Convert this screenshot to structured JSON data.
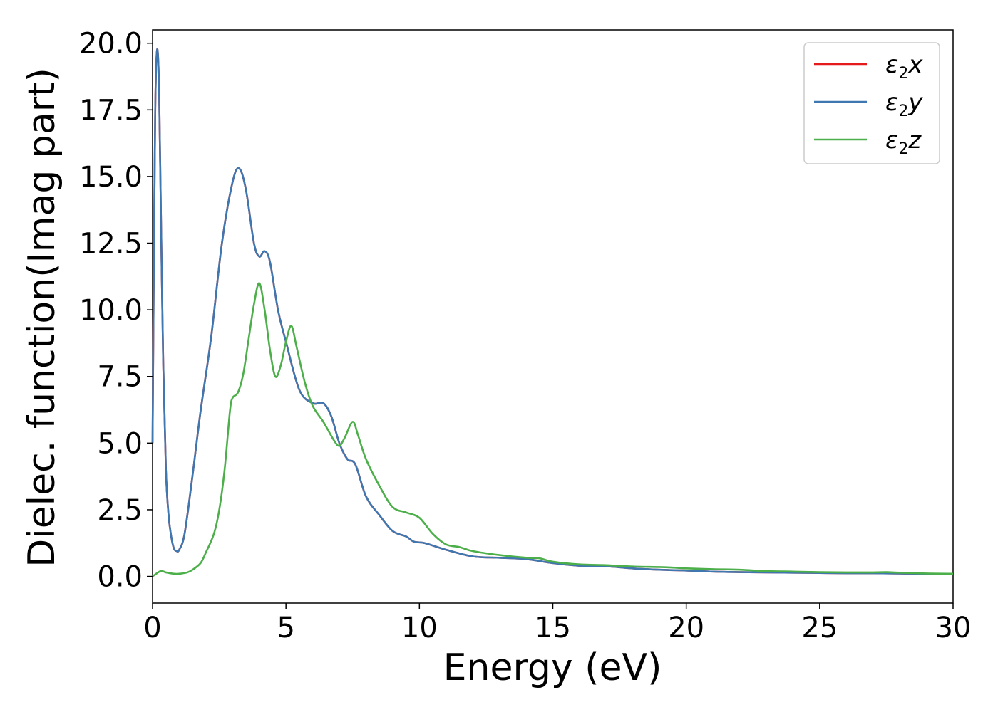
{
  "chart_data": {
    "type": "line",
    "title": "",
    "xlabel": "Energy (eV)",
    "ylabel": "Dielec. function(Imag part)",
    "xlim": [
      0,
      30
    ],
    "ylim": [
      -1.0,
      20.5
    ],
    "xticks": [
      0,
      5,
      10,
      15,
      20,
      25,
      30
    ],
    "xtick_labels": [
      "0",
      "5",
      "10",
      "15",
      "20",
      "25",
      "30"
    ],
    "yticks": [
      0.0,
      2.5,
      5.0,
      7.5,
      10.0,
      12.5,
      15.0,
      17.5,
      20.0
    ],
    "ytick_labels": [
      "0.0",
      "2.5",
      "5.0",
      "7.5",
      "10.0",
      "12.5",
      "15.0",
      "17.5",
      "20.0"
    ],
    "grid": false,
    "legend_position": "top-right",
    "series": [
      {
        "name": "ε2x",
        "legend_main": "ε",
        "legend_sub": "2",
        "legend_tail": "x",
        "color": "#e41a1c",
        "x": [
          0.0,
          0.05,
          0.1,
          0.15,
          0.2,
          0.25,
          0.3,
          0.4,
          0.5,
          0.6,
          0.7,
          0.8,
          0.9,
          1.0,
          1.2,
          1.5,
          1.8,
          2.2,
          2.6,
          3.0,
          3.25,
          3.5,
          3.8,
          4.0,
          4.2,
          4.4,
          4.7,
          5.0,
          5.5,
          6.0,
          6.4,
          6.7,
          7.0,
          7.3,
          7.6,
          8.0,
          8.5,
          9.0,
          9.5,
          9.8,
          10.2,
          11.0,
          12.0,
          13.0,
          14.0,
          15.0,
          16.0,
          17.0,
          18.0,
          19.0,
          20.0,
          21.0,
          22.0,
          23.0,
          24.0,
          25.0,
          26.0,
          27.0,
          28.0,
          29.0,
          30.0
        ],
        "y": [
          5.0,
          12.0,
          17.5,
          19.5,
          19.6,
          18.0,
          14.5,
          8.0,
          4.0,
          2.3,
          1.5,
          1.05,
          0.95,
          1.0,
          1.6,
          3.8,
          6.2,
          9.0,
          12.5,
          14.8,
          15.3,
          14.5,
          12.5,
          12.0,
          12.2,
          11.8,
          10.0,
          8.8,
          7.0,
          6.5,
          6.5,
          6.0,
          5.0,
          4.4,
          4.2,
          3.0,
          2.3,
          1.7,
          1.5,
          1.3,
          1.25,
          1.0,
          0.75,
          0.7,
          0.65,
          0.5,
          0.4,
          0.38,
          0.3,
          0.25,
          0.22,
          0.18,
          0.16,
          0.15,
          0.14,
          0.13,
          0.12,
          0.12,
          0.11,
          0.1,
          0.1
        ]
      },
      {
        "name": "ε2y",
        "legend_main": "ε",
        "legend_sub": "2",
        "legend_tail": "y",
        "color": "#3f78b0",
        "x": [
          0.0,
          0.05,
          0.1,
          0.15,
          0.2,
          0.25,
          0.3,
          0.4,
          0.5,
          0.6,
          0.7,
          0.8,
          0.9,
          1.0,
          1.2,
          1.5,
          1.8,
          2.2,
          2.6,
          3.0,
          3.25,
          3.5,
          3.8,
          4.0,
          4.2,
          4.4,
          4.7,
          5.0,
          5.5,
          6.0,
          6.4,
          6.7,
          7.0,
          7.3,
          7.6,
          8.0,
          8.5,
          9.0,
          9.5,
          9.8,
          10.2,
          11.0,
          12.0,
          13.0,
          14.0,
          15.0,
          16.0,
          17.0,
          18.0,
          19.0,
          20.0,
          21.0,
          22.0,
          23.0,
          24.0,
          25.0,
          26.0,
          27.0,
          28.0,
          29.0,
          30.0
        ],
        "y": [
          5.0,
          12.0,
          17.5,
          19.5,
          19.6,
          18.0,
          14.5,
          8.0,
          4.0,
          2.3,
          1.5,
          1.05,
          0.95,
          1.0,
          1.6,
          3.8,
          6.2,
          9.0,
          12.5,
          14.8,
          15.3,
          14.5,
          12.5,
          12.0,
          12.2,
          11.8,
          10.0,
          8.8,
          7.0,
          6.5,
          6.5,
          6.0,
          5.0,
          4.4,
          4.2,
          3.0,
          2.3,
          1.7,
          1.5,
          1.3,
          1.25,
          1.0,
          0.75,
          0.7,
          0.65,
          0.5,
          0.4,
          0.38,
          0.3,
          0.25,
          0.22,
          0.18,
          0.16,
          0.15,
          0.14,
          0.13,
          0.12,
          0.12,
          0.11,
          0.1,
          0.1
        ]
      },
      {
        "name": "ε2z",
        "legend_main": "ε",
        "legend_sub": "2",
        "legend_tail": "z",
        "color": "#4daf4a",
        "x": [
          0.0,
          0.3,
          0.5,
          0.8,
          1.0,
          1.3,
          1.5,
          1.8,
          2.0,
          2.3,
          2.5,
          2.7,
          2.9,
          3.0,
          3.2,
          3.4,
          3.6,
          3.8,
          4.0,
          4.2,
          4.4,
          4.6,
          4.8,
          5.0,
          5.2,
          5.4,
          5.7,
          6.0,
          6.4,
          6.8,
          7.0,
          7.2,
          7.5,
          7.7,
          8.0,
          8.5,
          9.0,
          9.5,
          10.0,
          10.5,
          11.0,
          11.5,
          12.0,
          13.0,
          14.0,
          14.5,
          15.0,
          16.0,
          17.0,
          18.0,
          19.0,
          19.5,
          20.0,
          21.0,
          22.0,
          23.0,
          24.0,
          25.0,
          26.0,
          27.0,
          27.5,
          28.0,
          29.0,
          30.0
        ],
        "y": [
          0.0,
          0.2,
          0.15,
          0.1,
          0.1,
          0.15,
          0.25,
          0.5,
          0.9,
          1.6,
          2.5,
          4.0,
          6.2,
          6.7,
          6.9,
          7.6,
          8.9,
          10.2,
          11.0,
          10.0,
          8.5,
          7.5,
          7.9,
          8.8,
          9.4,
          8.6,
          7.3,
          6.4,
          5.8,
          5.1,
          4.9,
          5.2,
          5.8,
          5.3,
          4.4,
          3.4,
          2.6,
          2.4,
          2.2,
          1.6,
          1.2,
          1.1,
          0.95,
          0.8,
          0.7,
          0.68,
          0.55,
          0.45,
          0.42,
          0.37,
          0.35,
          0.33,
          0.3,
          0.27,
          0.25,
          0.2,
          0.18,
          0.16,
          0.15,
          0.15,
          0.16,
          0.14,
          0.11,
          0.1
        ]
      }
    ]
  }
}
